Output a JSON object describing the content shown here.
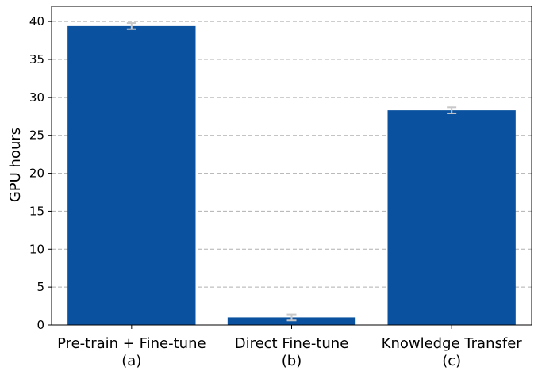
{
  "chart_data": {
    "type": "bar",
    "title": "",
    "xlabel": "",
    "ylabel": "GPU hours",
    "ylim": [
      0,
      42
    ],
    "yticks": [
      0,
      5,
      10,
      15,
      20,
      25,
      30,
      35,
      40
    ],
    "grid": "y-dashed",
    "categories": [
      [
        "Pre-train + Fine-tune",
        "(a)"
      ],
      [
        "Direct Fine-tune",
        "(b)"
      ],
      [
        "Knowledge Transfer",
        "(c)"
      ]
    ],
    "values": [
      39.4,
      1.0,
      28.3
    ],
    "errors": [
      0.4,
      0.4,
      0.4
    ],
    "colors": {
      "bar": "#0a519f",
      "error": "#c8c8c8",
      "grid": "#b0b0b0",
      "axis": "#000000"
    }
  }
}
